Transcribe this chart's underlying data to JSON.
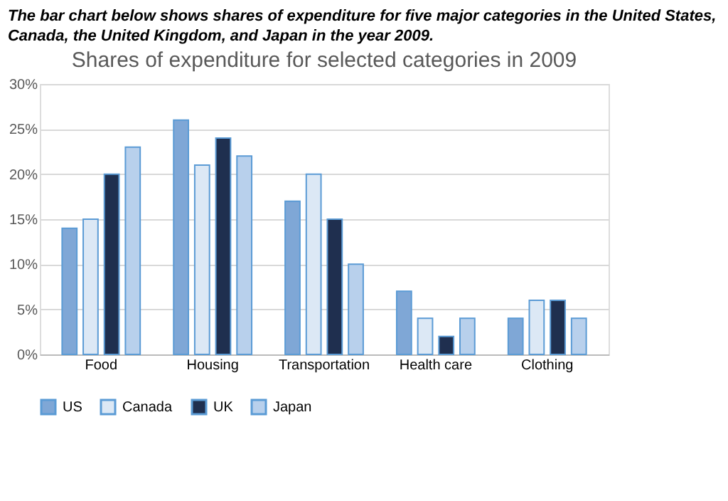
{
  "chart_data": {
    "type": "bar",
    "title": "Shares of expenditure for selected categories in 2009",
    "annotations": [
      "The bar chart below shows shares of expenditure for five major categories in the United States, Canada, the United Kingdom, and Japan in the year 2009."
    ],
    "categories": [
      "Food",
      "Housing",
      "Transportation",
      "Health care",
      "Clothing"
    ],
    "series": [
      {
        "name": "US",
        "color": "#7fa7d6",
        "values": [
          14,
          26,
          17,
          7,
          4
        ]
      },
      {
        "name": "Canada",
        "color": "#dce8f5",
        "values": [
          15,
          21,
          20,
          4,
          6
        ]
      },
      {
        "name": "UK",
        "color": "#1f2f4f",
        "values": [
          20,
          24,
          15,
          2,
          6
        ]
      },
      {
        "name": "Japan",
        "color": "#b8d0ec",
        "values": [
          23,
          22,
          10,
          4,
          4
        ]
      }
    ],
    "ylim": [
      0,
      30
    ],
    "yticks": [
      {
        "value": 0,
        "label": "0%"
      },
      {
        "value": 5,
        "label": "5%"
      },
      {
        "value": 10,
        "label": "10%"
      },
      {
        "value": 15,
        "label": "15%"
      },
      {
        "value": 20,
        "label": "20%"
      },
      {
        "value": 25,
        "label": "25%"
      },
      {
        "value": 30,
        "label": "30%"
      }
    ],
    "grid": "y",
    "legend": "bottom"
  }
}
